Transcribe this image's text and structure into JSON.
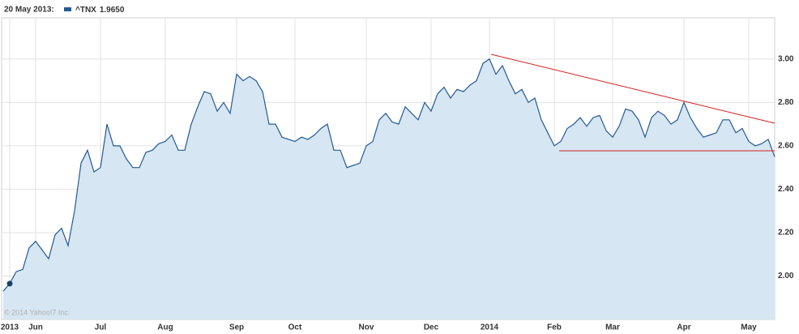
{
  "chart_data": {
    "type": "area",
    "highlight": {
      "date": "20 May 2013:",
      "value": 1.965,
      "label": "1.9650"
    },
    "watermark": "© 2014 Yahoo!7 Inc.",
    "categories": [
      null,
      "2013",
      null,
      null,
      null,
      "Jun",
      null,
      null,
      null,
      null,
      null,
      null,
      null,
      null,
      null,
      "Jul",
      null,
      null,
      null,
      null,
      null,
      null,
      null,
      null,
      null,
      "Aug",
      null,
      null,
      null,
      null,
      null,
      null,
      null,
      null,
      null,
      null,
      "Sep",
      null,
      null,
      null,
      null,
      null,
      null,
      null,
      null,
      "Oct",
      null,
      null,
      null,
      null,
      null,
      null,
      null,
      null,
      null,
      null,
      "Nov",
      null,
      null,
      null,
      null,
      null,
      null,
      null,
      null,
      null,
      "Dec",
      null,
      null,
      null,
      null,
      null,
      null,
      null,
      null,
      "2014",
      null,
      null,
      null,
      null,
      null,
      null,
      null,
      null,
      null,
      "Feb",
      null,
      null,
      null,
      null,
      null,
      null,
      null,
      null,
      "Mar",
      null,
      null,
      null,
      null,
      null,
      null,
      null,
      null,
      null,
      null,
      "Apr",
      null,
      null,
      null,
      null,
      null,
      null,
      null,
      null,
      null,
      "May",
      null,
      null,
      null,
      null
    ],
    "series": [
      {
        "name": "^TNX",
        "color": "#245a94",
        "fill": "#d6e6f2",
        "values": [
          1.93,
          1.965,
          2.02,
          2.03,
          2.13,
          2.16,
          2.12,
          2.08,
          2.19,
          2.22,
          2.14,
          2.3,
          2.52,
          2.58,
          2.48,
          2.5,
          2.7,
          2.6,
          2.6,
          2.54,
          2.5,
          2.5,
          2.57,
          2.58,
          2.61,
          2.62,
          2.65,
          2.58,
          2.58,
          2.7,
          2.78,
          2.85,
          2.84,
          2.76,
          2.8,
          2.75,
          2.93,
          2.9,
          2.92,
          2.9,
          2.85,
          2.7,
          2.7,
          2.64,
          2.63,
          2.62,
          2.64,
          2.63,
          2.65,
          2.68,
          2.7,
          2.58,
          2.58,
          2.5,
          2.51,
          2.52,
          2.6,
          2.62,
          2.72,
          2.75,
          2.71,
          2.7,
          2.78,
          2.75,
          2.72,
          2.8,
          2.76,
          2.84,
          2.87,
          2.82,
          2.86,
          2.85,
          2.88,
          2.9,
          2.98,
          3.0,
          2.93,
          2.97,
          2.9,
          2.84,
          2.86,
          2.8,
          2.82,
          2.72,
          2.66,
          2.6,
          2.62,
          2.68,
          2.7,
          2.73,
          2.69,
          2.73,
          2.74,
          2.67,
          2.64,
          2.69,
          2.77,
          2.76,
          2.72,
          2.64,
          2.73,
          2.76,
          2.74,
          2.7,
          2.72,
          2.8,
          2.73,
          2.68,
          2.64,
          2.65,
          2.66,
          2.72,
          2.72,
          2.66,
          2.68,
          2.62,
          2.6,
          2.61,
          2.63,
          2.55
        ]
      }
    ],
    "ylim": [
      1.8,
      3.19
    ],
    "yticks": [
      {
        "value": 2,
        "label": "2.00"
      },
      {
        "value": 2.2,
        "label": "2.20"
      },
      {
        "value": 2.4,
        "label": "2.40"
      },
      {
        "value": 2.6,
        "label": "2.60"
      },
      {
        "value": 2.8,
        "label": "2.80"
      },
      {
        "value": 3,
        "label": "3.00"
      }
    ],
    "grid": true
  }
}
